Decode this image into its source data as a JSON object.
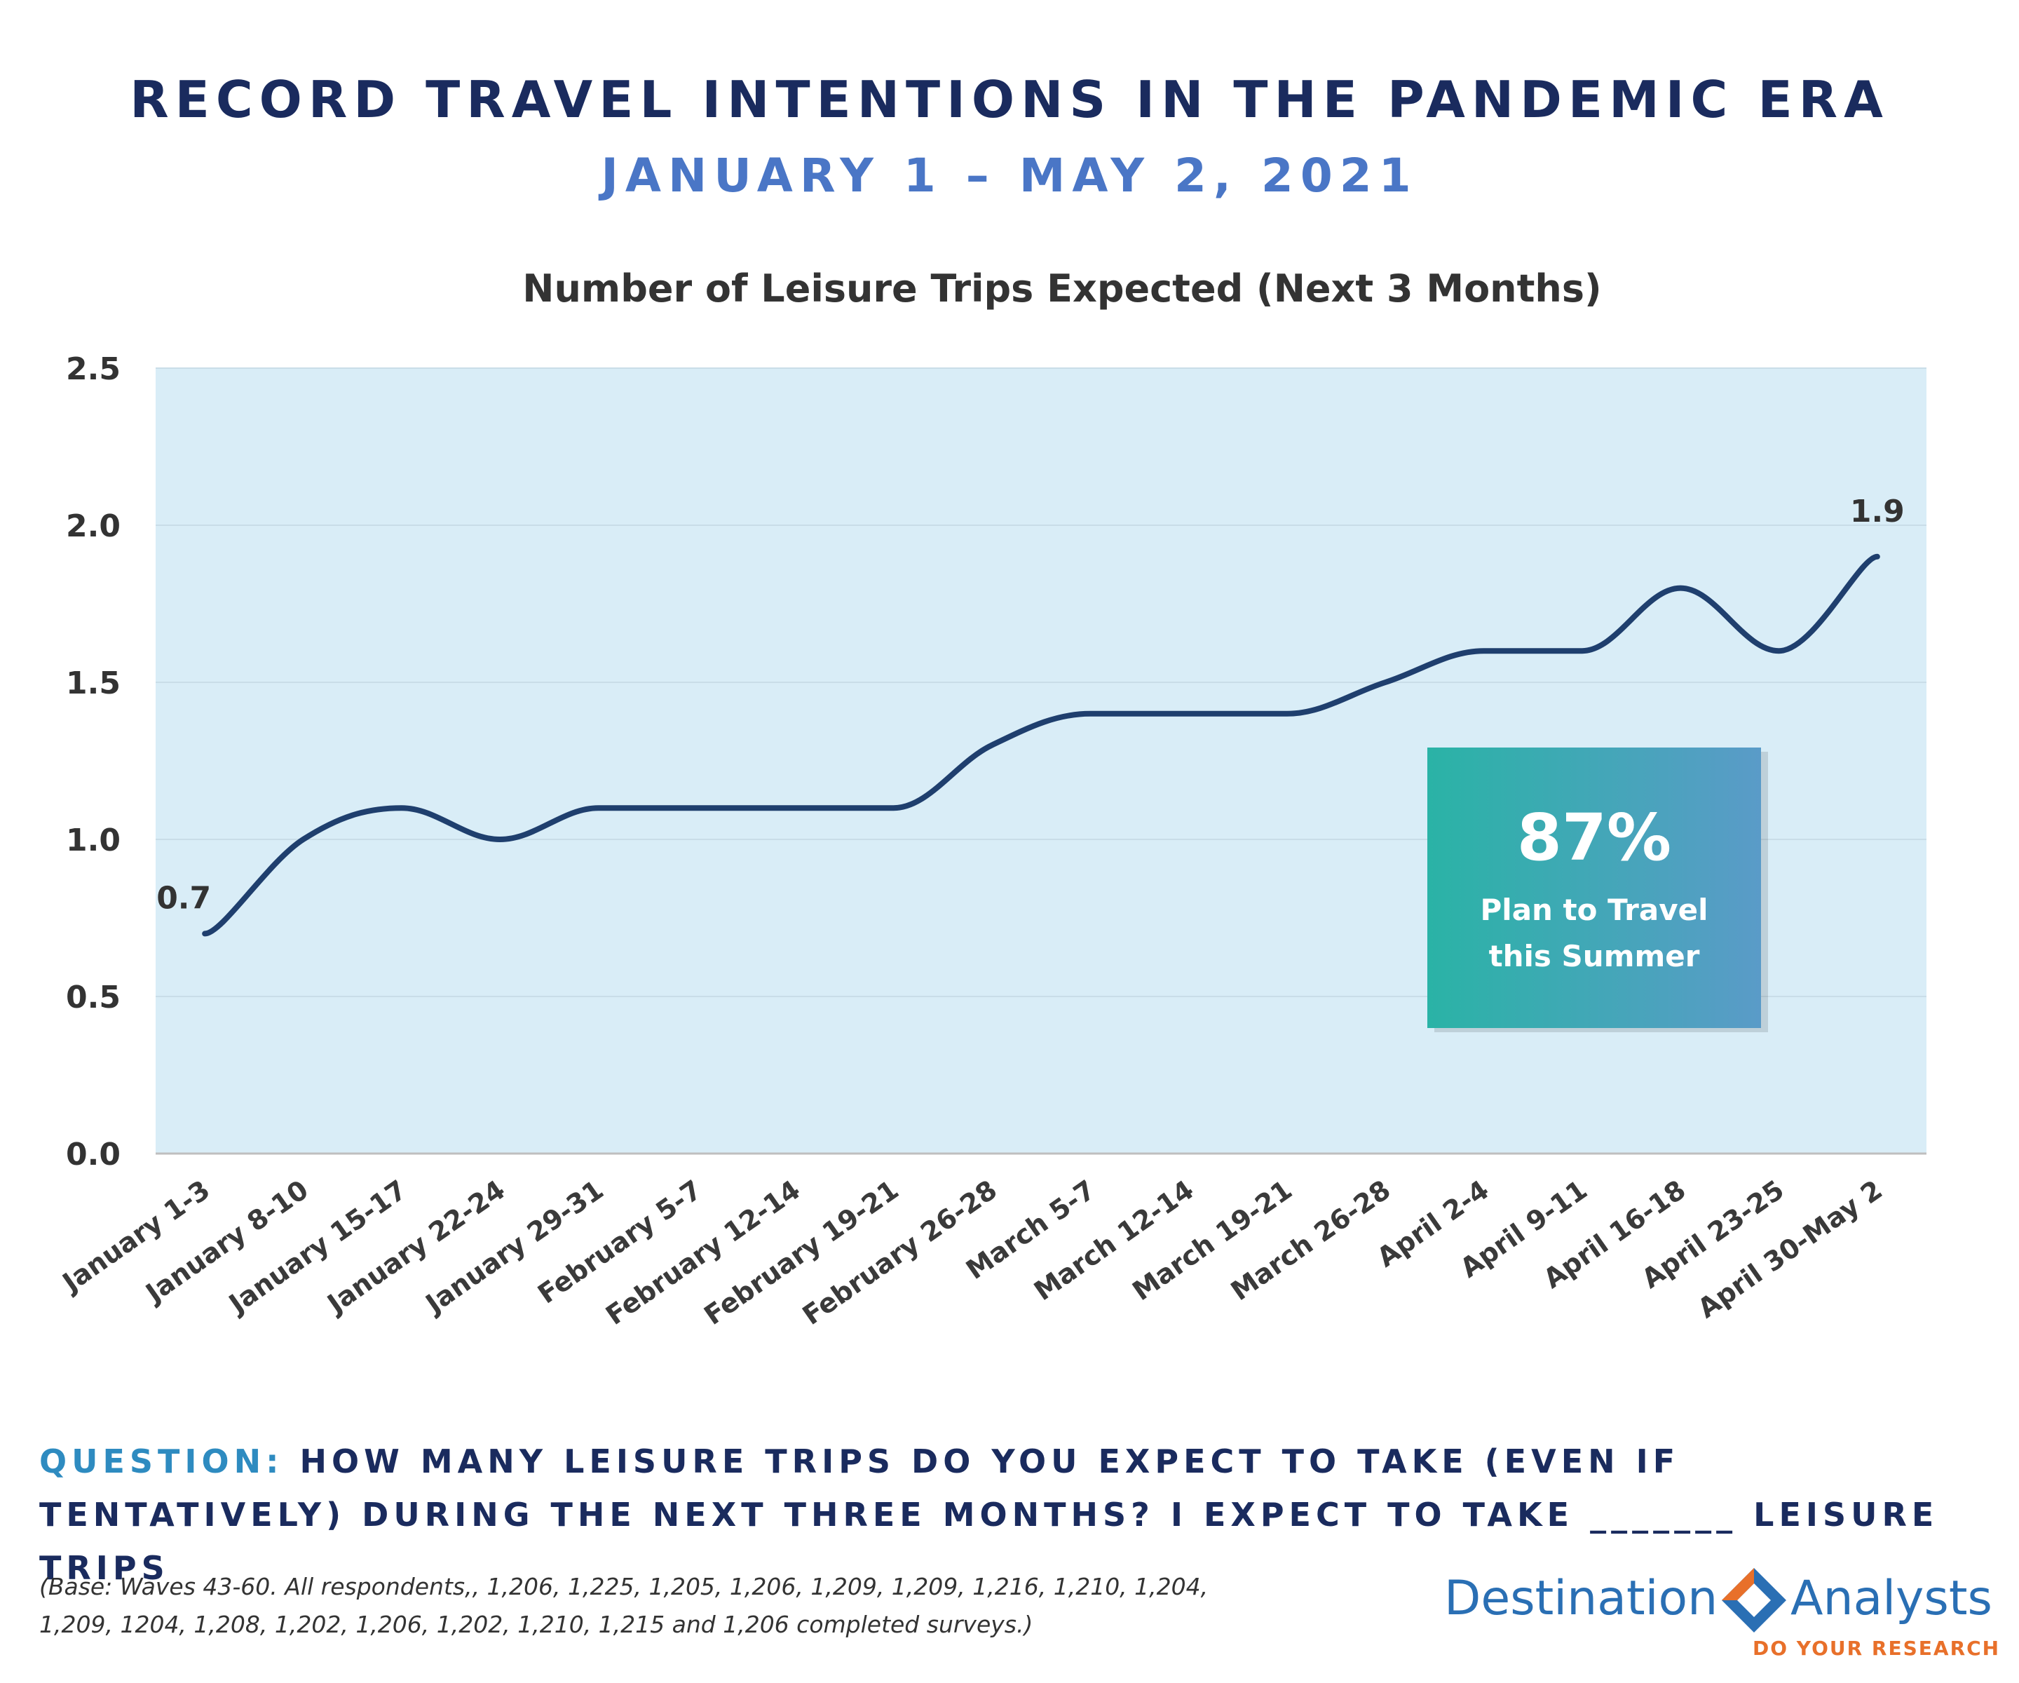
{
  "header": {
    "title": "RECORD TRAVEL INTENTIONS IN THE PANDEMIC ERA",
    "subtitle": "JANUARY 1 – MAY 2, 2021"
  },
  "chart_data": {
    "type": "line",
    "title": "Number of Leisure Trips Expected (Next 3 Months)",
    "xlabel": "",
    "ylabel": "",
    "categories": [
      "January 1-3",
      "January 8-10",
      "January 15-17",
      "January 22-24",
      "January 29-31",
      "February 5-7",
      "February 12-14",
      "February 19-21",
      "February 26-28",
      "March 5-7",
      "March 12-14",
      "March 19-21",
      "March 26-28",
      "April 2-4",
      "April 9-11",
      "April 16-18",
      "April 23-25",
      "April 30-May 2"
    ],
    "series": [
      {
        "values": [
          0.7,
          1.0,
          1.1,
          1.0,
          1.1,
          1.1,
          1.1,
          1.1,
          1.3,
          1.4,
          1.4,
          1.4,
          1.5,
          1.6,
          1.6,
          1.8,
          1.6,
          1.9
        ]
      }
    ],
    "ylim": [
      0,
      2.5
    ],
    "yticks": [
      "0.0",
      "0.5",
      "1.0",
      "1.5",
      "2.0",
      "2.5"
    ],
    "data_labels": [
      {
        "index": 0,
        "text": "0.7"
      },
      {
        "index": 17,
        "text": "1.9"
      }
    ],
    "grid": true,
    "legend": "none",
    "colors": {
      "line": "#1f3f6e",
      "plot_bg": "#d9edf7",
      "callout_from": "#2ab3a6",
      "callout_to": "#5a9bc8"
    }
  },
  "callout": {
    "value": "87%",
    "line1": "Plan to Travel",
    "line2": "this Summer"
  },
  "question": {
    "label": "QUESTION:",
    "text": " HOW MANY LEISURE TRIPS DO YOU EXPECT TO TAKE (EVEN IF TENTATIVELY) DURING THE NEXT THREE MONTHS?  I EXPECT TO TAKE _______ LEISURE TRIPS"
  },
  "base_note": {
    "line1": "(Base: Waves 43-60.  All respondents,, 1,206, 1,225, 1,205, 1,206, 1,209, 1,209, 1,216, 1,210, 1,204,",
    "line2": "1,209, 1204, 1,208, 1,202, 1,206, 1,202, 1,210, 1,215 and 1,206 completed surveys.)"
  },
  "logo": {
    "name_left": "Destination",
    "name_right": "Analysts",
    "tagline": "DO YOUR RESEARCH",
    "colors": {
      "name": "#2a6fb4",
      "diamond_orange": "#e8702a",
      "diamond_blue": "#2a6fb4"
    }
  }
}
